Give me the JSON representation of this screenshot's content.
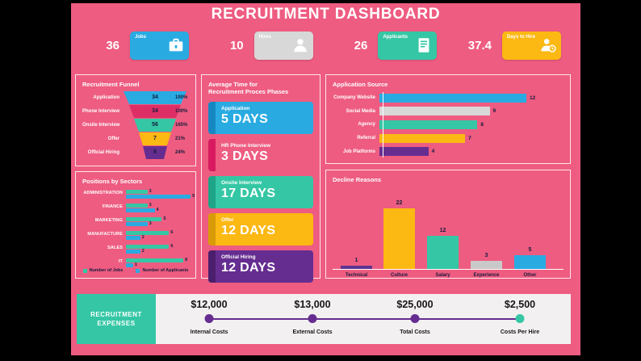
{
  "title": "RECRUITMENT DASHBOARD",
  "colors": {
    "background_pink": "#ee5c81",
    "blue": "#29abe2",
    "teal": "#35c7a5",
    "yellow": "#fcb813",
    "purple": "#662d91",
    "crimson": "#dd2f66",
    "gray": "#d8d8d8",
    "dark_text": "#141c3c",
    "expenses_bg": "#f2f0f0"
  },
  "kpis": [
    {
      "value": "36",
      "label": "Jobs",
      "icon": "briefcase-icon",
      "color": "#29abe2"
    },
    {
      "value": "10",
      "label": "Hires",
      "icon": "person-icon",
      "color": "#d8d8d8"
    },
    {
      "value": "26",
      "label": "Applicants",
      "icon": "resume-icon",
      "color": "#35c7a5"
    },
    {
      "value": "37.4",
      "label": "Days to Hire",
      "icon": "person-clock-icon",
      "color": "#fcb813"
    }
  ],
  "chart_data": [
    {
      "id": "funnel",
      "type": "funnel",
      "title": "Recruitment Funnel",
      "categories": [
        "Application",
        "Phone Interview",
        "Onsite Interview",
        "Offer",
        "Official Hiring"
      ],
      "values": [
        34,
        34,
        56,
        7,
        8
      ],
      "pcts": [
        "100%",
        "100%",
        "165%",
        "21%",
        "24%"
      ],
      "colors": [
        "#29abe2",
        "#dd2f66",
        "#35c7a5",
        "#fcb813",
        "#662d91"
      ]
    },
    {
      "id": "sectors",
      "type": "bar",
      "orientation": "horizontal",
      "title": "Positions by Sectors",
      "categories": [
        "ADMINISTRATION",
        "FINANCE",
        "MARKETING",
        "MANUFACTURE",
        "SALES",
        "IT"
      ],
      "series": [
        {
          "name": "Number of Jobs",
          "color": "#35c7a5",
          "values": [
            3,
            3,
            5,
            6,
            6,
            8
          ]
        },
        {
          "name": "Number of Applicants",
          "color": "#29abe2",
          "values": [
            9,
            4,
            3,
            2,
            2,
            1
          ]
        }
      ],
      "xlim": [
        0,
        9
      ],
      "legend_position": "bottom"
    },
    {
      "id": "avg_time",
      "type": "table",
      "title": "Average Time for Recruitment Proces Phases",
      "title_line1": "Average Time for",
      "title_line2": "Recruitment Proces Phases",
      "categories": [
        "Application",
        "HR Phone Interview",
        "Onsite Interview",
        "Offer",
        "Official Hiring"
      ],
      "values": [
        5,
        3,
        17,
        12,
        12
      ],
      "value_labels": [
        "5 DAYS",
        "3 DAYS",
        "17 DAYS",
        "12 DAYS",
        "12 DAYS"
      ],
      "colors": [
        "#29abe2",
        "#ee5c81",
        "#35c7a5",
        "#fcb813",
        "#662d91"
      ],
      "strip_colors": [
        "#1787c2",
        "#d81b60",
        "#1fa487",
        "#d99a07",
        "#4b1f6e"
      ]
    },
    {
      "id": "sources",
      "type": "bar",
      "orientation": "horizontal",
      "title": "Application Source",
      "categories": [
        "Company Website",
        "Social Media",
        "Agency",
        "Referral",
        "Job Platforms"
      ],
      "values": [
        12,
        9,
        8,
        7,
        4
      ],
      "colors": [
        "#29abe2",
        "#d8d8d8",
        "#35c7a5",
        "#fcb813",
        "#662d91"
      ],
      "xlim": [
        0,
        13
      ]
    },
    {
      "id": "decline",
      "type": "bar",
      "orientation": "vertical",
      "title": "Decline Reasons",
      "categories": [
        "Technical",
        "Culture",
        "Salary",
        "Experience",
        "Other"
      ],
      "values": [
        1,
        22,
        12,
        3,
        5
      ],
      "colors": [
        "#5e3391",
        "#fcb813",
        "#35c7a5",
        "#c9c9c9",
        "#29abe2"
      ],
      "ylim": [
        0,
        24
      ]
    },
    {
      "id": "expenses",
      "type": "table",
      "title": "RECRUITMENT EXPENSES",
      "block_line1": "RECRUITMENT",
      "block_line2": "EXPENSES",
      "categories": [
        "Internal Costs",
        "External Costs",
        "Total Costs",
        "Costs Per Hire"
      ],
      "value_labels": [
        "$12,000",
        "$13,000",
        "$25,000",
        "$2,500"
      ],
      "dot_colors": [
        "#662d91",
        "#662d91",
        "#662d91",
        "#35c7a5"
      ]
    }
  ]
}
